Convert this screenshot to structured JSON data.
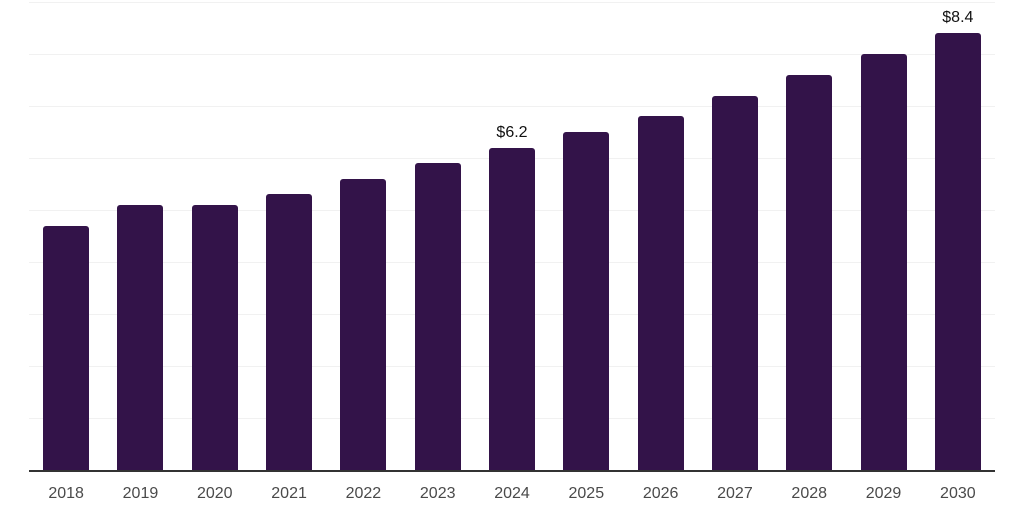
{
  "chart_data": {
    "type": "bar",
    "title": "",
    "xlabel": "",
    "ylabel": "",
    "categories": [
      "2018",
      "2019",
      "2020",
      "2021",
      "2022",
      "2023",
      "2024",
      "2025",
      "2026",
      "2027",
      "2028",
      "2029",
      "2030"
    ],
    "values": [
      4.7,
      5.1,
      5.1,
      5.3,
      5.6,
      5.9,
      6.2,
      6.5,
      6.8,
      7.2,
      7.6,
      8.0,
      8.4
    ],
    "data_labels": [
      {
        "index": 6,
        "category": "2024",
        "text": "$6.2"
      },
      {
        "index": 12,
        "category": "2030",
        "text": "$8.4"
      }
    ],
    "ylim": [
      0,
      9
    ],
    "gridline_interval": 1,
    "grid": "horizontal",
    "legend": "none",
    "y_tick_labels_visible": false
  },
  "style": {
    "bar_color": "#331349",
    "gridline_color": "#f1f1f1",
    "axis_line_color": "#333333",
    "tick_label_color": "#4a4a4a",
    "value_label_color": "#111111",
    "background_color": "#ffffff"
  }
}
